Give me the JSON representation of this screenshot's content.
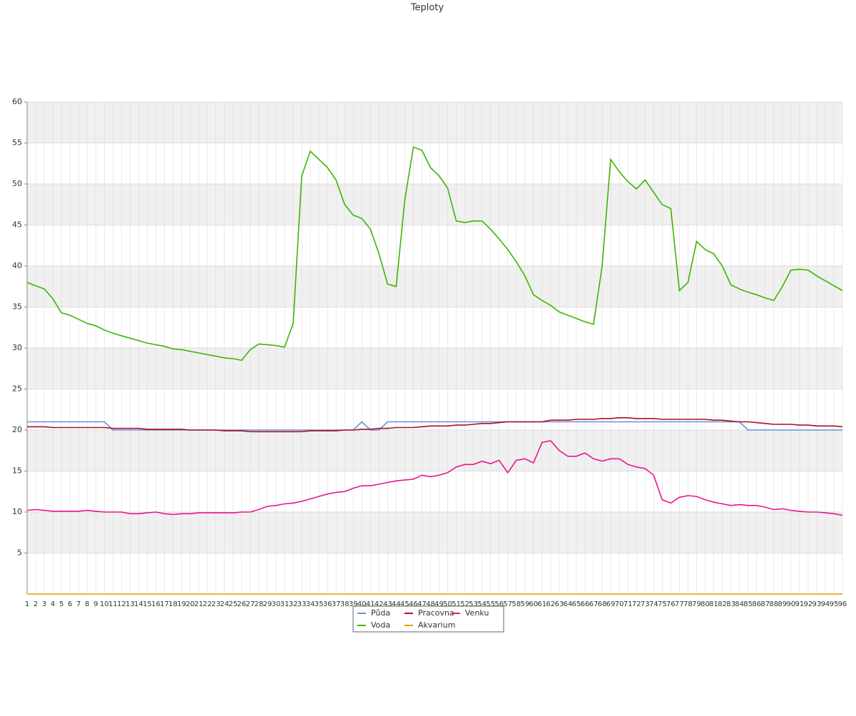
{
  "chart_data": {
    "type": "line",
    "title": "Teploty",
    "categories": [
      "1",
      "2",
      "3",
      "4",
      "5",
      "6",
      "7",
      "8",
      "9",
      "10",
      "11",
      "12",
      "13",
      "14",
      "15",
      "16",
      "17",
      "18",
      "19",
      "20",
      "21",
      "22",
      "23",
      "24",
      "25",
      "26",
      "27",
      "28",
      "29",
      "30",
      "31",
      "32",
      "33",
      "34",
      "35",
      "36",
      "37",
      "38",
      "39",
      "40",
      "41",
      "42",
      "43",
      "44",
      "45",
      "46",
      "47",
      "48",
      "49",
      "50",
      "51",
      "52",
      "53",
      "54",
      "55",
      "56",
      "57",
      "58",
      "59",
      "60",
      "61",
      "62",
      "63",
      "64",
      "65",
      "66",
      "67",
      "68",
      "69",
      "70",
      "71",
      "72",
      "73",
      "74",
      "75",
      "76",
      "77",
      "78",
      "79",
      "80",
      "81",
      "82",
      "83",
      "84",
      "85",
      "86",
      "87",
      "88",
      "89",
      "90",
      "91",
      "92",
      "93",
      "94",
      "95",
      "96"
    ],
    "ylim": [
      0,
      60
    ],
    "yticks": [
      5,
      10,
      15,
      20,
      25,
      30,
      35,
      40,
      45,
      50,
      55,
      60
    ],
    "grid": true,
    "series": [
      {
        "name": "Půda",
        "color": "#6a8fe0",
        "values": [
          21,
          21,
          21,
          21,
          21,
          21,
          21,
          21,
          21,
          21,
          20,
          20,
          20,
          20,
          20,
          20,
          20,
          20,
          20,
          20,
          20,
          20,
          20,
          20,
          20,
          20,
          20,
          20,
          20,
          20,
          20,
          20,
          20,
          20,
          20,
          20,
          20,
          20,
          20,
          21,
          20,
          20,
          21,
          21,
          21,
          21,
          21,
          21,
          21,
          21,
          21,
          21,
          21,
          21,
          21,
          21,
          21,
          21,
          21,
          21,
          21,
          21,
          21,
          21,
          21,
          21,
          21,
          21,
          21,
          21,
          21,
          21,
          21,
          21,
          21,
          21,
          21,
          21,
          21,
          21,
          21,
          21,
          21,
          21,
          20,
          20,
          20,
          20,
          20,
          20,
          20,
          20,
          20,
          20,
          20,
          20
        ]
      },
      {
        "name": "Pracovna",
        "color": "#a8121a",
        "values": [
          20.4,
          20.4,
          20.4,
          20.3,
          20.3,
          20.3,
          20.3,
          20.3,
          20.3,
          20.3,
          20.2,
          20.2,
          20.2,
          20.2,
          20.1,
          20.1,
          20.1,
          20.1,
          20.1,
          20.0,
          20.0,
          20.0,
          20.0,
          19.9,
          19.9,
          19.9,
          19.8,
          19.8,
          19.8,
          19.8,
          19.8,
          19.8,
          19.8,
          19.9,
          19.9,
          19.9,
          19.9,
          20,
          20,
          20.1,
          20.1,
          20.2,
          20.2,
          20.3,
          20.3,
          20.3,
          20.4,
          20.5,
          20.5,
          20.5,
          20.6,
          20.6,
          20.7,
          20.8,
          20.8,
          20.9,
          21,
          21,
          21,
          21,
          21,
          21.2,
          21.2,
          21.2,
          21.3,
          21.3,
          21.3,
          21.4,
          21.4,
          21.5,
          21.5,
          21.4,
          21.4,
          21.4,
          21.3,
          21.3,
          21.3,
          21.3,
          21.3,
          21.3,
          21.2,
          21.2,
          21.1,
          21.0,
          21.0,
          20.9,
          20.8,
          20.7,
          20.7,
          20.7,
          20.6,
          20.6,
          20.5,
          20.5,
          20.5,
          20.4
        ]
      },
      {
        "name": "Venku",
        "color": "#e8168a",
        "values": [
          10.2,
          10.3,
          10.2,
          10.1,
          10.1,
          10.1,
          10.1,
          10.2,
          10.1,
          10.0,
          10.0,
          10.0,
          9.8,
          9.8,
          9.9,
          10.0,
          9.8,
          9.7,
          9.8,
          9.8,
          9.9,
          9.9,
          9.9,
          9.9,
          9.9,
          10.0,
          10.0,
          10.3,
          10.7,
          10.8,
          11.0,
          11.1,
          11.3,
          11.6,
          11.9,
          12.2,
          12.4,
          12.5,
          12.9,
          13.2,
          13.2,
          13.4,
          13.6,
          13.8,
          13.9,
          14.0,
          14.5,
          14.3,
          14.5,
          14.8,
          15.5,
          15.8,
          15.8,
          16.2,
          15.9,
          16.3,
          14.8,
          16.3,
          16.5,
          16.0,
          18.5,
          18.7,
          17.5,
          16.8,
          16.8,
          17.2,
          16.5,
          16.2,
          16.5,
          16.5,
          15.8,
          15.5,
          15.3,
          14.5,
          11.5,
          11.1,
          11.8,
          12.0,
          11.9,
          11.5,
          11.2,
          11.0,
          10.8,
          10.9,
          10.8,
          10.8,
          10.6,
          10.3,
          10.4,
          10.2,
          10.1,
          10.0,
          10.0,
          9.9,
          9.8,
          9.6
        ]
      },
      {
        "name": "Voda",
        "color": "#3cb500",
        "values": [
          38,
          37.6,
          37.2,
          36,
          34.3,
          34,
          33.5,
          33,
          32.7,
          32.2,
          31.8,
          31.5,
          31.2,
          30.9,
          30.6,
          30.4,
          30.2,
          29.9,
          29.8,
          29.6,
          29.4,
          29.2,
          29,
          28.8,
          28.7,
          28.5,
          29.8,
          30.5,
          30.4,
          30.3,
          30.1,
          33,
          51,
          54,
          53,
          52,
          50.5,
          47.5,
          46.2,
          45.8,
          44.5,
          41.5,
          37.8,
          37.5,
          48,
          54.5,
          54.1,
          52,
          51,
          49.5,
          45.5,
          45.3,
          45.5,
          45.5,
          44.5,
          43.3,
          42,
          40.5,
          38.8,
          36.5,
          35.8,
          35.2,
          34.4,
          34,
          33.6,
          33.2,
          32.9,
          40,
          53,
          51.5,
          50.3,
          49.4,
          50.5,
          49,
          47.5,
          47,
          37,
          38,
          43,
          42,
          41.5,
          40,
          37.7,
          37.2,
          36.8,
          36.5,
          36.1,
          35.8,
          37.5,
          39.5,
          39.6,
          39.5,
          38.8,
          38.2,
          37.6,
          37
        ]
      },
      {
        "name": "Akvarium",
        "color": "#e0a000",
        "values": [
          0,
          0,
          0,
          0,
          0,
          0,
          0,
          0,
          0,
          0,
          0,
          0,
          0,
          0,
          0,
          0,
          0,
          0,
          0,
          0,
          0,
          0,
          0,
          0,
          0,
          0,
          0,
          0,
          0,
          0,
          0,
          0,
          0,
          0,
          0,
          0,
          0,
          0,
          0,
          0,
          0,
          0,
          0,
          0,
          0,
          0,
          0,
          0,
          0,
          0,
          0,
          0,
          0,
          0,
          0,
          0,
          0,
          0,
          0,
          0,
          0,
          0,
          0,
          0,
          0,
          0,
          0,
          0,
          0,
          0,
          0,
          0,
          0,
          0,
          0,
          0,
          0,
          0,
          0,
          0,
          0,
          0,
          0,
          0,
          0,
          0,
          0,
          0,
          0,
          0,
          0,
          0,
          0,
          0,
          0,
          0
        ]
      }
    ]
  }
}
